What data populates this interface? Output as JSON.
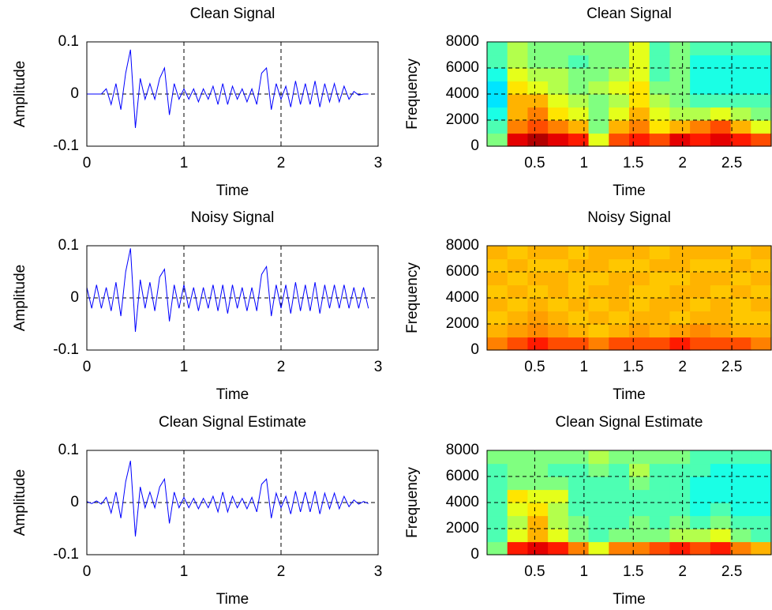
{
  "chart_data": [
    {
      "type": "line",
      "title": "Clean Signal",
      "xlabel": "Time",
      "ylabel": "Amplitude",
      "color": "#0000ff",
      "x": [
        0,
        0.05,
        0.1,
        0.15,
        0.2,
        0.25,
        0.3,
        0.35,
        0.4,
        0.45,
        0.5,
        0.55,
        0.6,
        0.65,
        0.7,
        0.75,
        0.8,
        0.85,
        0.9,
        0.95,
        1,
        1.05,
        1.1,
        1.15,
        1.2,
        1.25,
        1.3,
        1.35,
        1.4,
        1.45,
        1.5,
        1.55,
        1.6,
        1.65,
        1.7,
        1.75,
        1.8,
        1.85,
        1.9,
        1.95,
        2,
        2.05,
        2.1,
        2.15,
        2.2,
        2.25,
        2.3,
        2.35,
        2.4,
        2.45,
        2.5,
        2.55,
        2.6,
        2.65,
        2.7,
        2.75,
        2.8,
        2.85,
        2.9
      ],
      "values": [
        0,
        0,
        0,
        0,
        0.01,
        -0.02,
        0.02,
        -0.03,
        0.04,
        0.085,
        -0.065,
        0.03,
        -0.01,
        0.02,
        -0.01,
        0.03,
        0.05,
        -0.04,
        0.02,
        -0.01,
        0.01,
        -0.01,
        0.01,
        -0.015,
        0.01,
        -0.01,
        0.015,
        -0.02,
        0.02,
        -0.02,
        0.015,
        -0.01,
        0.01,
        -0.015,
        0.01,
        -0.02,
        0.04,
        0.05,
        -0.03,
        0.02,
        -0.01,
        0.015,
        -0.025,
        0.025,
        -0.02,
        0.02,
        -0.02,
        0.025,
        -0.025,
        0.02,
        -0.015,
        0.02,
        -0.015,
        0.015,
        -0.01,
        0.005,
        -0.002,
        0,
        0
      ],
      "xlim": [
        0,
        3
      ],
      "ylim": [
        -0.1,
        0.1
      ],
      "xticks": [
        0,
        1,
        2,
        3
      ],
      "yticks": [
        -0.1,
        0,
        0.1
      ],
      "grid": true
    },
    {
      "type": "heatmap",
      "title": "Clean Signal",
      "xlabel": "Time",
      "ylabel": "Frequency",
      "colormap": "jet",
      "z": [
        [
          0.5,
          0.9,
          0.95,
          0.9,
          0.85,
          0.6,
          0.8,
          0.85,
          0.8,
          0.9,
          0.85,
          0.9,
          0.85,
          0.8
        ],
        [
          0.45,
          0.75,
          0.8,
          0.75,
          0.7,
          0.5,
          0.7,
          0.75,
          0.65,
          0.7,
          0.75,
          0.8,
          0.7,
          0.6
        ],
        [
          0.4,
          0.7,
          0.75,
          0.65,
          0.6,
          0.5,
          0.6,
          0.7,
          0.6,
          0.55,
          0.55,
          0.6,
          0.55,
          0.5
        ],
        [
          0.35,
          0.7,
          0.7,
          0.6,
          0.55,
          0.5,
          0.55,
          0.65,
          0.55,
          0.5,
          0.45,
          0.45,
          0.45,
          0.45
        ],
        [
          0.35,
          0.65,
          0.6,
          0.55,
          0.5,
          0.55,
          0.6,
          0.65,
          0.5,
          0.5,
          0.4,
          0.4,
          0.4,
          0.4
        ],
        [
          0.4,
          0.6,
          0.55,
          0.55,
          0.5,
          0.5,
          0.55,
          0.6,
          0.45,
          0.5,
          0.4,
          0.4,
          0.4,
          0.4
        ],
        [
          0.45,
          0.55,
          0.5,
          0.5,
          0.45,
          0.5,
          0.5,
          0.6,
          0.45,
          0.5,
          0.4,
          0.4,
          0.4,
          0.4
        ],
        [
          0.45,
          0.55,
          0.5,
          0.5,
          0.5,
          0.5,
          0.5,
          0.6,
          0.45,
          0.5,
          0.45,
          0.45,
          0.45,
          0.45
        ]
      ],
      "xlim": [
        0.016,
        2.9
      ],
      "ylim": [
        0,
        8000
      ],
      "xticks": [
        0.5,
        1,
        1.5,
        2,
        2.5
      ],
      "yticks": [
        0,
        2000,
        4000,
        6000,
        8000
      ],
      "grid": true
    },
    {
      "type": "line",
      "title": "Noisy Signal",
      "xlabel": "Time",
      "ylabel": "Amplitude",
      "color": "#0000ff",
      "x": [
        0,
        0.05,
        0.1,
        0.15,
        0.2,
        0.25,
        0.3,
        0.35,
        0.4,
        0.45,
        0.5,
        0.55,
        0.6,
        0.65,
        0.7,
        0.75,
        0.8,
        0.85,
        0.9,
        0.95,
        1,
        1.05,
        1.1,
        1.15,
        1.2,
        1.25,
        1.3,
        1.35,
        1.4,
        1.45,
        1.5,
        1.55,
        1.6,
        1.65,
        1.7,
        1.75,
        1.8,
        1.85,
        1.9,
        1.95,
        2,
        2.05,
        2.1,
        2.15,
        2.2,
        2.25,
        2.3,
        2.35,
        2.4,
        2.45,
        2.5,
        2.55,
        2.6,
        2.65,
        2.7,
        2.75,
        2.8,
        2.85,
        2.9
      ],
      "values": [
        0.02,
        -0.02,
        0.025,
        -0.02,
        0.02,
        -0.025,
        0.03,
        -0.035,
        0.05,
        0.095,
        -0.065,
        0.035,
        -0.02,
        0.03,
        -0.025,
        0.04,
        0.055,
        -0.045,
        0.025,
        -0.02,
        0.025,
        -0.02,
        0.02,
        -0.025,
        0.02,
        -0.02,
        0.025,
        -0.025,
        0.025,
        -0.03,
        0.025,
        -0.02,
        0.02,
        -0.025,
        0.02,
        -0.025,
        0.045,
        0.06,
        -0.035,
        0.025,
        -0.02,
        0.025,
        -0.03,
        0.03,
        -0.025,
        0.025,
        -0.025,
        0.03,
        -0.03,
        0.025,
        -0.02,
        0.025,
        -0.02,
        0.025,
        -0.02,
        0.02,
        -0.02,
        0.02,
        -0.02
      ],
      "xlim": [
        0,
        3
      ],
      "ylim": [
        -0.1,
        0.1
      ],
      "xticks": [
        0,
        1,
        2,
        3
      ],
      "yticks": [
        -0.1,
        0,
        0.1
      ],
      "grid": true
    },
    {
      "type": "heatmap",
      "title": "Noisy Signal",
      "xlabel": "Time",
      "ylabel": "Frequency",
      "colormap": "jet",
      "z": [
        [
          0.75,
          0.8,
          0.85,
          0.8,
          0.8,
          0.75,
          0.8,
          0.8,
          0.8,
          0.85,
          0.8,
          0.8,
          0.8,
          0.75
        ],
        [
          0.7,
          0.72,
          0.74,
          0.72,
          0.7,
          0.68,
          0.7,
          0.72,
          0.7,
          0.72,
          0.74,
          0.72,
          0.7,
          0.7
        ],
        [
          0.68,
          0.7,
          0.72,
          0.7,
          0.68,
          0.7,
          0.68,
          0.7,
          0.7,
          0.68,
          0.7,
          0.7,
          0.68,
          0.68
        ],
        [
          0.7,
          0.68,
          0.7,
          0.68,
          0.7,
          0.68,
          0.7,
          0.68,
          0.7,
          0.7,
          0.68,
          0.7,
          0.68,
          0.7
        ],
        [
          0.68,
          0.7,
          0.68,
          0.7,
          0.68,
          0.7,
          0.7,
          0.68,
          0.68,
          0.7,
          0.7,
          0.68,
          0.7,
          0.68
        ],
        [
          0.7,
          0.68,
          0.7,
          0.7,
          0.68,
          0.68,
          0.7,
          0.7,
          0.68,
          0.68,
          0.7,
          0.7,
          0.68,
          0.7
        ],
        [
          0.68,
          0.7,
          0.68,
          0.68,
          0.7,
          0.7,
          0.68,
          0.68,
          0.7,
          0.7,
          0.68,
          0.68,
          0.7,
          0.68
        ],
        [
          0.7,
          0.68,
          0.7,
          0.7,
          0.68,
          0.7,
          0.7,
          0.7,
          0.68,
          0.7,
          0.7,
          0.7,
          0.68,
          0.7
        ]
      ],
      "xlim": [
        0.016,
        2.9
      ],
      "ylim": [
        0,
        8000
      ],
      "xticks": [
        0.5,
        1,
        1.5,
        2,
        2.5
      ],
      "yticks": [
        0,
        2000,
        4000,
        6000,
        8000
      ],
      "grid": true
    },
    {
      "type": "line",
      "title": "Clean Signal Estimate",
      "xlabel": "Time",
      "ylabel": "Amplitude",
      "color": "#0000ff",
      "x": [
        0,
        0.05,
        0.1,
        0.15,
        0.2,
        0.25,
        0.3,
        0.35,
        0.4,
        0.45,
        0.5,
        0.55,
        0.6,
        0.65,
        0.7,
        0.75,
        0.8,
        0.85,
        0.9,
        0.95,
        1,
        1.05,
        1.1,
        1.15,
        1.2,
        1.25,
        1.3,
        1.35,
        1.4,
        1.45,
        1.5,
        1.55,
        1.6,
        1.65,
        1.7,
        1.75,
        1.8,
        1.85,
        1.9,
        1.95,
        2,
        2.05,
        2.1,
        2.15,
        2.2,
        2.25,
        2.3,
        2.35,
        2.4,
        2.45,
        2.5,
        2.55,
        2.6,
        2.65,
        2.7,
        2.75,
        2.8,
        2.85,
        2.9
      ],
      "values": [
        0.002,
        -0.002,
        0.003,
        -0.003,
        0.01,
        -0.02,
        0.02,
        -0.03,
        0.04,
        0.08,
        -0.065,
        0.03,
        -0.01,
        0.02,
        -0.01,
        0.03,
        0.045,
        -0.04,
        0.02,
        -0.01,
        0.01,
        -0.01,
        0.008,
        -0.012,
        0.008,
        -0.01,
        0.012,
        -0.018,
        0.02,
        -0.018,
        0.012,
        -0.01,
        0.008,
        -0.012,
        0.01,
        -0.018,
        0.035,
        0.045,
        -0.03,
        0.018,
        -0.01,
        0.012,
        -0.022,
        0.022,
        -0.018,
        0.02,
        -0.018,
        0.022,
        -0.022,
        0.018,
        -0.012,
        0.018,
        -0.012,
        0.012,
        -0.008,
        0.005,
        -0.003,
        0.002,
        -0.002
      ],
      "xlim": [
        0,
        3
      ],
      "ylim": [
        -0.1,
        0.1
      ],
      "xticks": [
        0,
        1,
        2,
        3
      ],
      "yticks": [
        -0.1,
        0,
        0.1
      ],
      "grid": true
    },
    {
      "type": "heatmap",
      "title": "Clean Signal Estimate",
      "xlabel": "Time",
      "ylabel": "Frequency",
      "colormap": "jet",
      "z": [
        [
          0.5,
          0.85,
          0.9,
          0.85,
          0.75,
          0.6,
          0.75,
          0.75,
          0.8,
          0.85,
          0.8,
          0.85,
          0.75,
          0.7
        ],
        [
          0.45,
          0.6,
          0.7,
          0.6,
          0.5,
          0.45,
          0.5,
          0.5,
          0.5,
          0.55,
          0.55,
          0.6,
          0.5,
          0.45
        ],
        [
          0.45,
          0.55,
          0.7,
          0.55,
          0.5,
          0.45,
          0.45,
          0.5,
          0.45,
          0.5,
          0.45,
          0.5,
          0.45,
          0.45
        ],
        [
          0.45,
          0.6,
          0.65,
          0.55,
          0.45,
          0.45,
          0.45,
          0.45,
          0.45,
          0.45,
          0.4,
          0.45,
          0.4,
          0.4
        ],
        [
          0.45,
          0.65,
          0.6,
          0.6,
          0.45,
          0.45,
          0.45,
          0.45,
          0.45,
          0.45,
          0.4,
          0.4,
          0.4,
          0.4
        ],
        [
          0.45,
          0.5,
          0.5,
          0.5,
          0.45,
          0.45,
          0.45,
          0.5,
          0.45,
          0.45,
          0.4,
          0.4,
          0.4,
          0.4
        ],
        [
          0.45,
          0.5,
          0.5,
          0.45,
          0.45,
          0.5,
          0.45,
          0.55,
          0.45,
          0.45,
          0.45,
          0.4,
          0.4,
          0.4
        ],
        [
          0.5,
          0.5,
          0.5,
          0.5,
          0.5,
          0.55,
          0.5,
          0.5,
          0.5,
          0.5,
          0.45,
          0.45,
          0.45,
          0.45
        ]
      ],
      "xlim": [
        0.016,
        2.9
      ],
      "ylim": [
        0,
        8000
      ],
      "xticks": [
        0.5,
        1,
        1.5,
        2,
        2.5
      ],
      "yticks": [
        0,
        2000,
        4000,
        6000,
        8000
      ],
      "grid": true
    }
  ]
}
